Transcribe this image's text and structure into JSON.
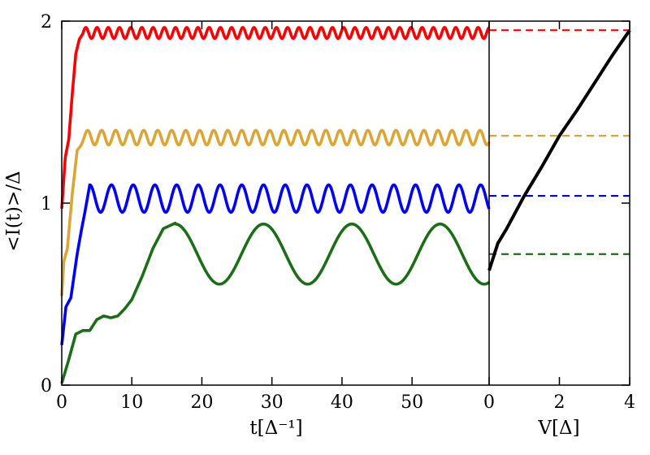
{
  "chart_data": [
    {
      "type": "line",
      "panel": "left",
      "xlabel": "t[Δ⁻¹]",
      "ylabel": "<I(t)>/Δ",
      "xlim": [
        0,
        61
      ],
      "ylim": [
        0,
        2
      ],
      "xticks": [
        0,
        10,
        20,
        30,
        40,
        50
      ],
      "yticks": [
        0,
        1,
        2
      ],
      "grid": false,
      "series": [
        {
          "color": "#ff0000",
          "t_rise": [
            0,
            0.5,
            1.0,
            1.5,
            2.0,
            2.5,
            3.0
          ],
          "y_rise": [
            0.97,
            1.25,
            1.35,
            1.6,
            1.82,
            1.9,
            1.93
          ],
          "mean": 1.935,
          "amplitude": 0.03,
          "period": 1.6,
          "t_osc_start": 3.0
        },
        {
          "color": "#dca534",
          "t_rise": [
            0,
            0.3,
            0.8,
            1.5,
            2.2,
            2.8,
            3.2
          ],
          "y_rise": [
            0.49,
            0.68,
            0.75,
            1.05,
            1.29,
            1.32,
            1.36
          ],
          "mean": 1.36,
          "amplitude": 0.04,
          "period": 2.0,
          "t_osc_start": 3.2
        },
        {
          "color": "#0000ff",
          "t_rise": [
            0,
            0.6,
            1.3,
            2.2,
            2.8,
            3.3,
            4.0
          ],
          "y_rise": [
            0.22,
            0.43,
            0.48,
            0.72,
            0.85,
            0.95,
            1.1
          ],
          "mean": 1.025,
          "amplitude": 0.075,
          "period": 3.1,
          "t_osc_start": 4.0
        },
        {
          "color": "#1a6e16",
          "t_rise": [
            0,
            1.0,
            2.0,
            3.0,
            4.0,
            5.0,
            6.0,
            7.0,
            8.0,
            9.0,
            10.0,
            11.5,
            13.0,
            14.5,
            16.2
          ],
          "y_rise": [
            0.01,
            0.14,
            0.28,
            0.3,
            0.3,
            0.36,
            0.38,
            0.37,
            0.38,
            0.42,
            0.47,
            0.6,
            0.75,
            0.86,
            0.89
          ],
          "mean": 0.72,
          "amplitude": 0.165,
          "period": 12.6,
          "t_osc_start": 16.2
        }
      ],
      "reference_lines": [
        {
          "color": "#ff0000",
          "y": 1.95
        },
        {
          "color": "#dca534",
          "y": 1.37
        },
        {
          "color": "#0000ff",
          "y": 1.04
        },
        {
          "color": "#1a6e16",
          "y": 0.72
        }
      ]
    },
    {
      "type": "line",
      "panel": "right",
      "xlabel": "V[Δ]",
      "xlim": [
        0,
        4
      ],
      "ylim": [
        0,
        2
      ],
      "xticks": [
        0,
        2,
        4
      ],
      "series": [
        {
          "color": "#000000",
          "x": [
            0,
            0.25,
            0.5,
            0.75,
            1.0,
            1.5,
            2.0,
            2.5,
            3.0,
            3.5,
            4.0
          ],
          "y": [
            0.63,
            0.78,
            0.86,
            0.95,
            1.04,
            1.2,
            1.37,
            1.51,
            1.66,
            1.81,
            1.95
          ]
        }
      ]
    }
  ]
}
